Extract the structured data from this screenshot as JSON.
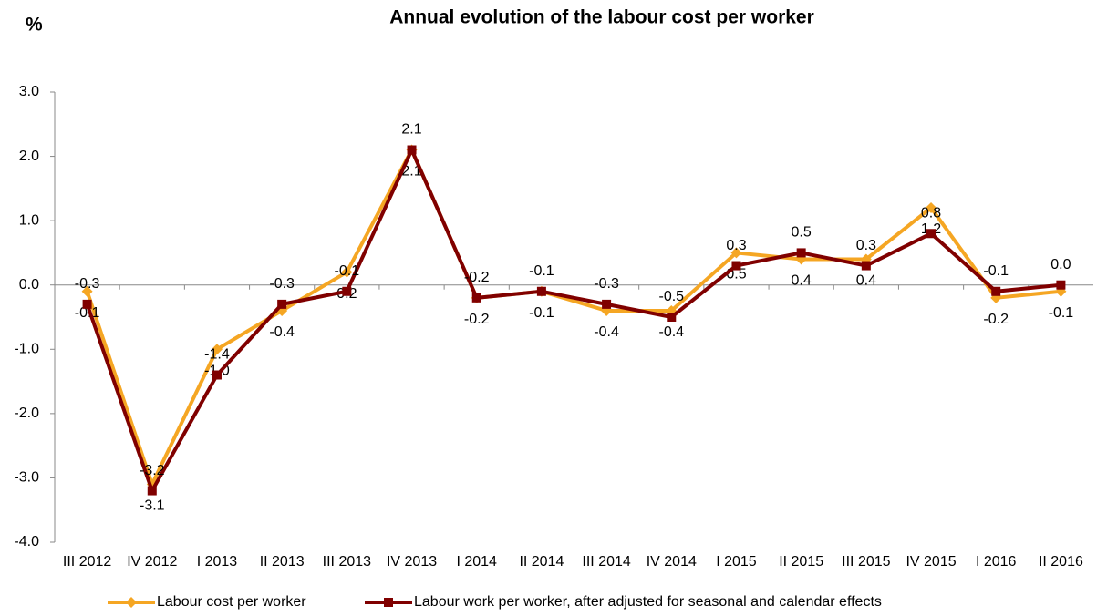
{
  "chart_data": {
    "type": "line",
    "title": "Annual evolution of the labour cost per worker",
    "y_label": "%",
    "categories": [
      "III 2012",
      "IV 2012",
      "I 2013",
      "II 2013",
      "III 2013",
      "IV 2013",
      "I 2014",
      "II 2014",
      "III 2014",
      "IV 2014",
      "I 2015",
      "II 2015",
      "III 2015",
      "IV 2015",
      "I 2016",
      "II 2016"
    ],
    "series": [
      {
        "name": "Labour cost per worker",
        "color": "#f5a623",
        "marker": "diamond",
        "label_position": "below",
        "values": [
          -0.1,
          -3.1,
          -1.0,
          -0.4,
          0.2,
          2.1,
          -0.2,
          -0.1,
          -0.4,
          -0.4,
          0.5,
          0.4,
          0.4,
          1.2,
          -0.2,
          -0.1
        ],
        "value_labels": [
          "-0.1",
          "-3.1",
          "-1.0",
          "-0.4",
          "0.2",
          "2.1",
          "-0.2",
          "-0.1",
          "-0.4",
          "-0.4",
          "0.5",
          "0.4",
          "0.4",
          "1.2",
          "-0.2",
          "-0.1"
        ]
      },
      {
        "name": "Labour work per worker, after adjusted for seasonal and calendar effects",
        "color": "#800000",
        "marker": "square",
        "label_position": "above",
        "values": [
          -0.3,
          -3.2,
          -1.4,
          -0.3,
          -0.1,
          2.1,
          -0.2,
          -0.1,
          -0.3,
          -0.5,
          0.3,
          0.5,
          0.3,
          0.8,
          -0.1,
          0.0
        ],
        "value_labels": [
          "-0.3",
          "-3.2",
          "-1.4",
          "-0.3",
          "-0.1",
          "2.1",
          "-0.2",
          "-0.1",
          "-0.3",
          "-0.5",
          "0.3",
          "0.5",
          "0.3",
          "0.8",
          "-0.1",
          "0.0"
        ]
      }
    ],
    "ylim": [
      -4,
      3
    ],
    "yticks": [
      {
        "value": -4,
        "label": "-4.0"
      },
      {
        "value": -3,
        "label": "-3.0"
      },
      {
        "value": -2,
        "label": "-2.0"
      },
      {
        "value": -1,
        "label": "-1.0"
      },
      {
        "value": 0,
        "label": "0.0"
      },
      {
        "value": 1,
        "label": "1.0"
      },
      {
        "value": 2,
        "label": "2.0"
      },
      {
        "value": 3,
        "label": "3.0"
      }
    ],
    "grid": false,
    "legend": "bottom"
  }
}
